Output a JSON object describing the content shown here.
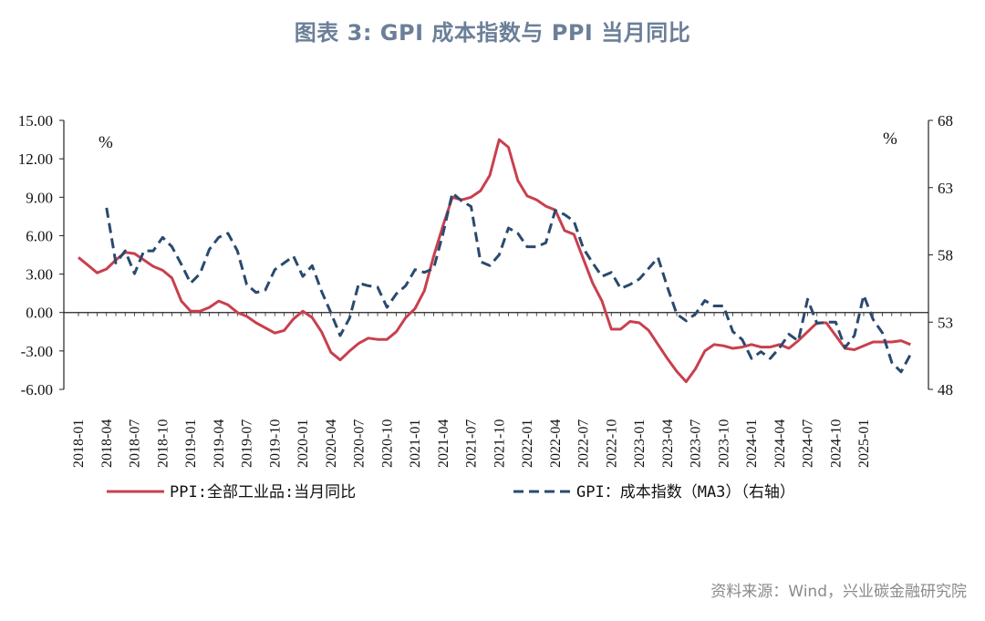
{
  "header": {
    "title": "图表 3:   GPI 成本指数与 PPI 当月同比"
  },
  "footer": {
    "source": "资料来源：Wind，兴业碳金融研究院"
  },
  "chart_data": {
    "type": "line",
    "left_unit": "%",
    "right_unit": "%",
    "y_left": {
      "min": -6,
      "max": 15,
      "ticks": [
        "15.00",
        "12.00",
        "9.00",
        "6.00",
        "3.00",
        "0.00",
        "-3.00",
        "-6.00"
      ]
    },
    "y_right": {
      "min": 48,
      "max": 68,
      "ticks": [
        "68",
        "63",
        "58",
        "53",
        "48"
      ]
    },
    "x_tick_labels": [
      "2018-01",
      "2018-04",
      "2018-07",
      "2018-10",
      "2019-01",
      "2019-04",
      "2019-07",
      "2019-10",
      "2020-01",
      "2020-04",
      "2020-07",
      "2020-10",
      "2021-01",
      "2021-04",
      "2021-07",
      "2021-10",
      "2022-01",
      "2022-04",
      "2022-07",
      "2022-10",
      "2023-01",
      "2023-04",
      "2023-07",
      "2023-10",
      "2024-01",
      "2024-04",
      "2024-07",
      "2024-10",
      "2025-01"
    ],
    "series": [
      {
        "name": "PPI:全部工业品:当月同比",
        "axis": "left",
        "color": "#c8404e",
        "style": "solid",
        "values": [
          4.3,
          3.7,
          3.1,
          3.4,
          4.1,
          4.7,
          4.6,
          4.1,
          3.6,
          3.3,
          2.7,
          0.9,
          0.1,
          0.1,
          0.4,
          0.9,
          0.6,
          0.0,
          -0.3,
          -0.8,
          -1.2,
          -1.6,
          -1.4,
          -0.5,
          0.1,
          -0.4,
          -1.5,
          -3.1,
          -3.7,
          -3.0,
          -2.4,
          -2.0,
          -2.1,
          -2.1,
          -1.5,
          -0.4,
          0.3,
          1.7,
          4.4,
          6.8,
          9.0,
          8.8,
          9.0,
          9.5,
          10.7,
          13.5,
          12.9,
          10.3,
          9.1,
          8.8,
          8.3,
          8.0,
          6.4,
          6.1,
          4.2,
          2.3,
          0.9,
          -1.3,
          -1.3,
          -0.7,
          -0.8,
          -1.4,
          -2.5,
          -3.6,
          -4.6,
          -5.4,
          -4.4,
          -3.0,
          -2.5,
          -2.6,
          -2.8,
          -2.7,
          -2.5,
          -2.7,
          -2.7,
          -2.5,
          -2.8,
          -2.2,
          -1.5,
          -0.8,
          -0.8,
          -1.8,
          -2.8,
          -2.9,
          -2.6,
          -2.3,
          -2.3,
          -2.3,
          -2.2,
          -2.5
        ]
      },
      {
        "name": "GPI：成本指数（MA3）（右轴）",
        "axis": "right",
        "color": "#2a4a6e",
        "style": "dashed",
        "values": [
          null,
          null,
          null,
          61.5,
          57.4,
          58.3,
          56.6,
          58.3,
          58.3,
          59.3,
          58.6,
          57.3,
          55.9,
          56.6,
          58.4,
          59.3,
          59.6,
          58.3,
          55.8,
          55.2,
          55.4,
          56.9,
          57.4,
          57.9,
          56.4,
          57.2,
          55.3,
          53.7,
          52.0,
          53.3,
          55.9,
          55.7,
          55.6,
          54.1,
          55.1,
          55.7,
          56.9,
          56.7,
          57.0,
          59.6,
          62.6,
          62.0,
          61.6,
          57.5,
          57.2,
          58.0,
          60.0,
          59.6,
          58.6,
          58.6,
          58.9,
          61.3,
          61.0,
          60.5,
          58.5,
          57.4,
          56.4,
          56.7,
          55.5,
          55.8,
          56.2,
          57.0,
          57.8,
          55.6,
          53.6,
          53.1,
          53.6,
          54.6,
          54.2,
          54.2,
          52.3,
          51.7,
          50.3,
          50.8,
          50.3,
          51.1,
          52.1,
          51.6,
          54.7,
          52.9,
          53.0,
          53.0,
          51.1,
          52.0,
          55.0,
          53.2,
          52.2,
          50.0,
          49.3,
          50.6
        ]
      }
    ]
  }
}
